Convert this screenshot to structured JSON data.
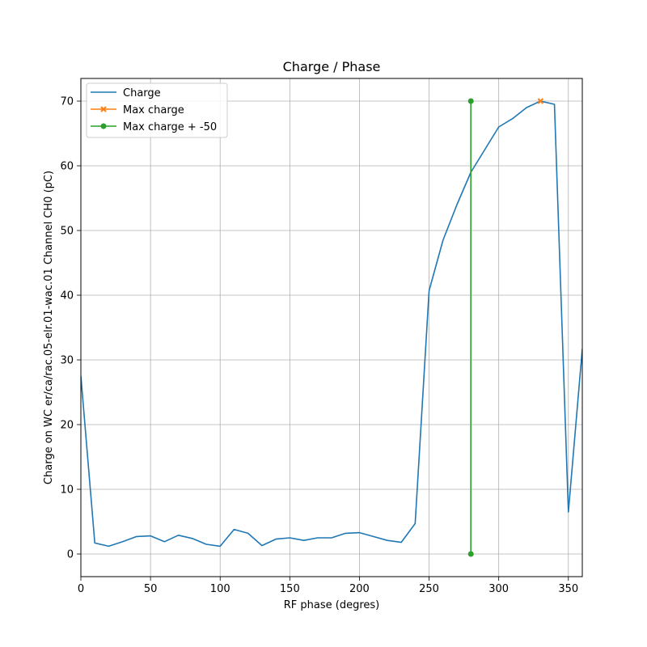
{
  "chart_data": {
    "type": "line",
    "title": "Charge / Phase",
    "xlabel": "RF phase (degres)",
    "ylabel": "Charge on WC er/ca/rac.05-elr.01-wac.01 Channel CH0 (pC)",
    "xlim": [
      0,
      360
    ],
    "ylim": [
      -3.5,
      73.5
    ],
    "xticks": [
      0,
      50,
      100,
      150,
      200,
      250,
      300,
      350
    ],
    "yticks": [
      0,
      10,
      20,
      30,
      40,
      50,
      60,
      70
    ],
    "grid": true,
    "legend_position": "upper-left",
    "series": [
      {
        "name": "Charge",
        "color": "#1f77b4",
        "marker": "none",
        "x": [
          0,
          10,
          20,
          30,
          40,
          50,
          60,
          70,
          80,
          90,
          100,
          110,
          120,
          130,
          140,
          150,
          160,
          170,
          180,
          190,
          200,
          210,
          220,
          230,
          240,
          250,
          260,
          270,
          280,
          290,
          300,
          310,
          320,
          330,
          340,
          350,
          360
        ],
        "y": [
          27.5,
          1.7,
          1.2,
          1.9,
          2.7,
          2.8,
          1.9,
          2.9,
          2.4,
          1.5,
          1.2,
          3.8,
          3.2,
          1.3,
          2.3,
          2.5,
          2.1,
          2.5,
          2.5,
          3.2,
          3.3,
          2.7,
          2.1,
          1.8,
          4.7,
          40.7,
          48.5,
          54.0,
          59.0,
          62.5,
          66.0,
          67.3,
          69.0,
          70.0,
          69.5,
          6.5,
          31.7
        ]
      },
      {
        "name": "Max charge",
        "color": "#ff7f0e",
        "marker": "x",
        "x": [
          330
        ],
        "y": [
          70.0
        ]
      },
      {
        "name": "Max charge + -50",
        "color": "#2ca02c",
        "marker": "o",
        "x": [
          280,
          280
        ],
        "y": [
          70.0,
          0.0
        ]
      }
    ]
  }
}
